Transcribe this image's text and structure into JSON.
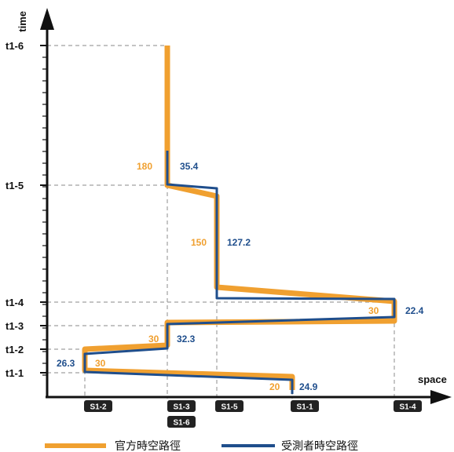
{
  "axes": {
    "y_label": "time",
    "x_label": "space",
    "y_ticks": [
      "t1-1",
      "t1-2",
      "t1-3",
      "t1-4",
      "t1-5",
      "t1-6"
    ],
    "x_ticks": [
      "S1-2",
      "S1-3",
      "S1-5",
      "S1-1",
      "S1-4"
    ],
    "x_tick_extra": "S1-6"
  },
  "series": [
    {
      "name": "官方時空路徑",
      "color": "#F0A030",
      "segment_labels": [
        "20",
        "30",
        "30",
        "30",
        "150",
        "180"
      ]
    },
    {
      "name": "受測者時空路徑",
      "color": "#1F4E8C",
      "segment_labels": [
        "24.9",
        "26.3",
        "32.3",
        "22.4",
        "127.2",
        "35.4"
      ]
    }
  ],
  "colors": {
    "orange": "#F0A030",
    "blue": "#1F4E8C",
    "axis": "#111111",
    "grid": "#999999",
    "tick_box": "#222222"
  }
}
